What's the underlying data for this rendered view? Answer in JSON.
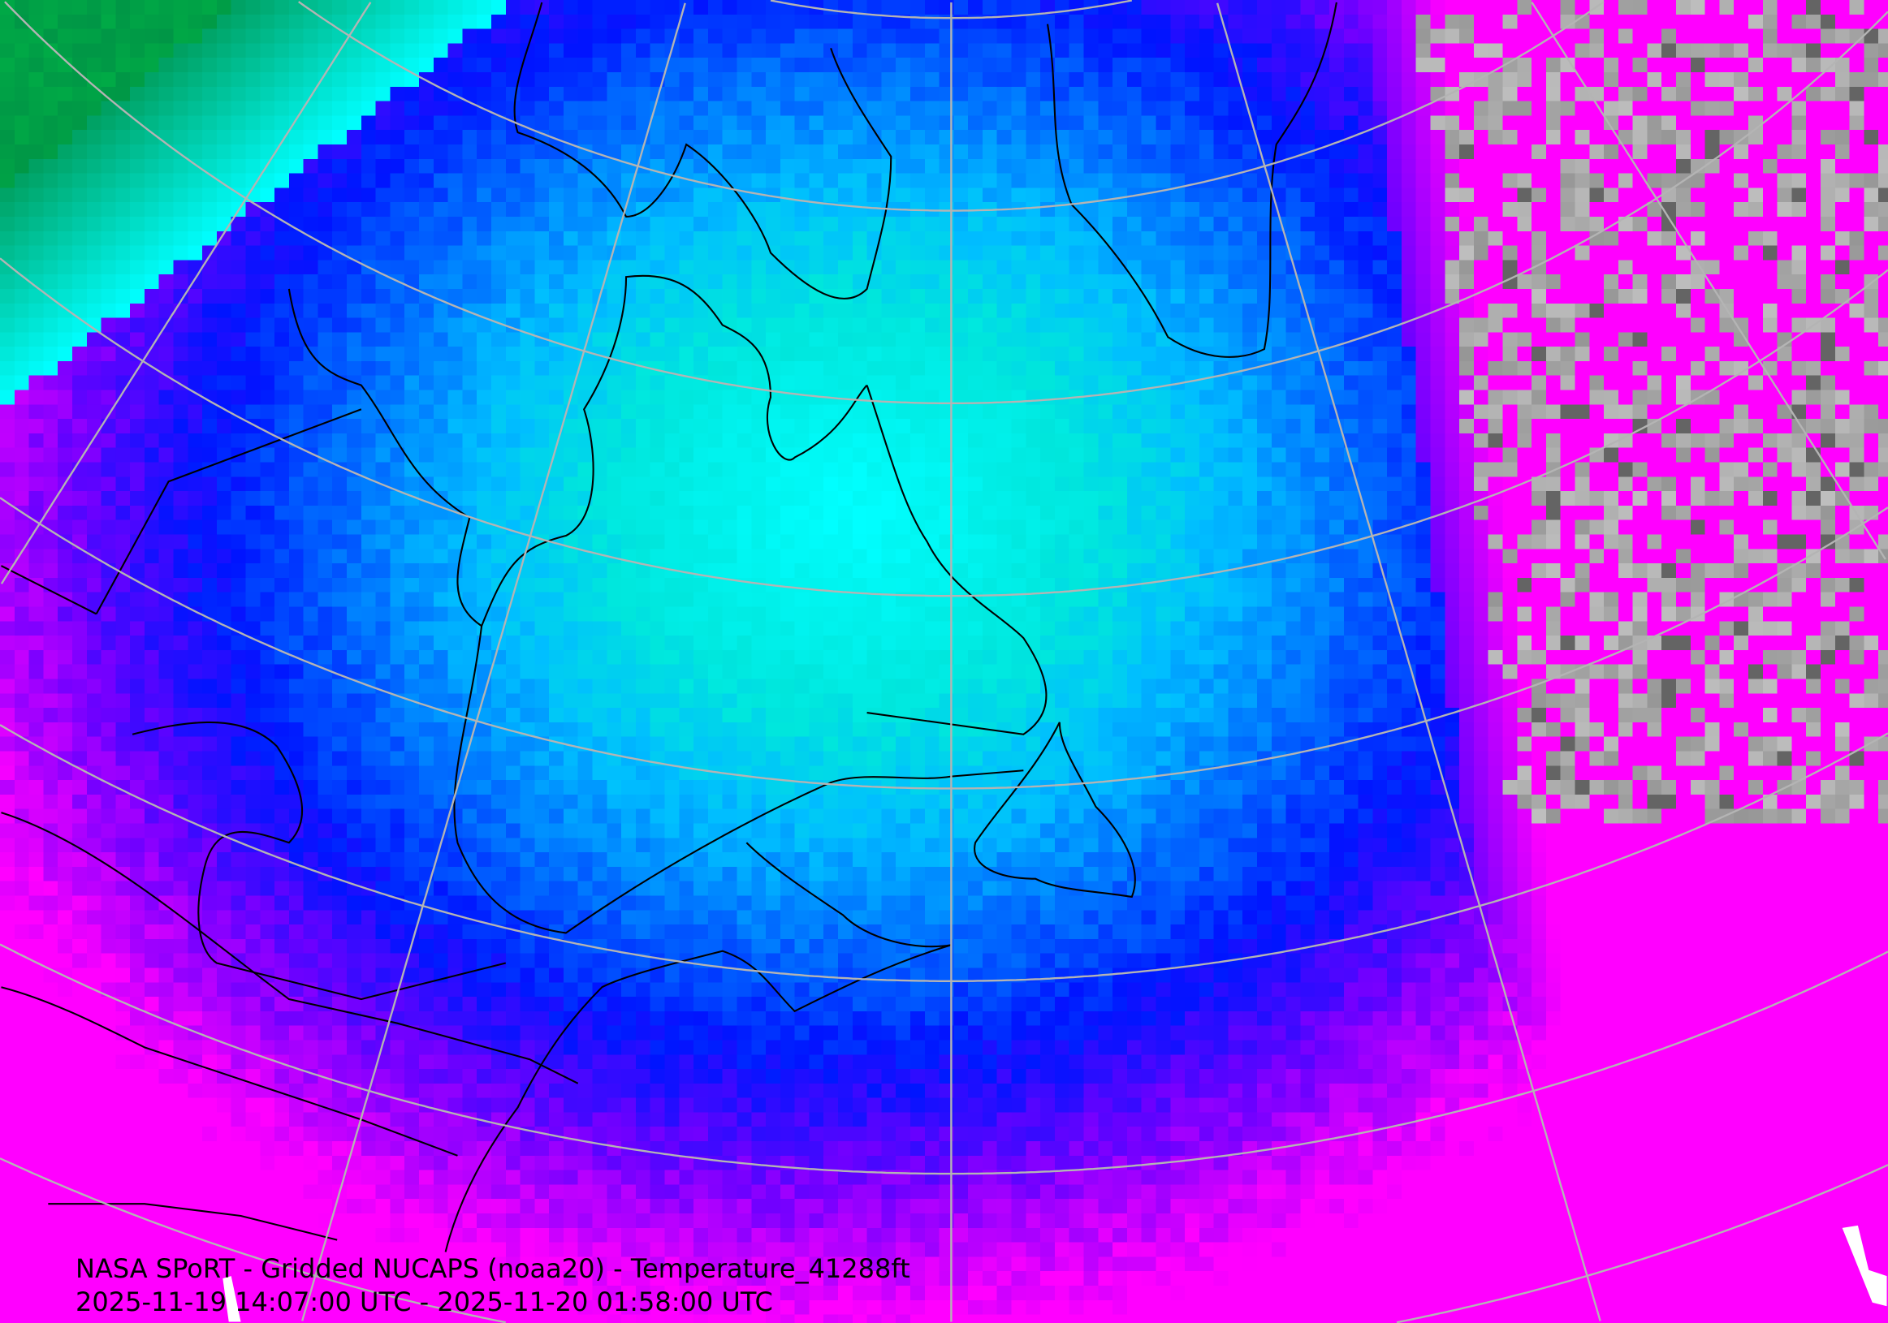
{
  "map": {
    "title": "NASA SPoRT - Gridded NUCAPS (noaa20) - Temperature_41288ft",
    "time_range": "2025-11-19 14:07:00 UTC - 2025-11-20 01:58:00 UTC",
    "projection": "conic",
    "colors": {
      "green": "#00a050",
      "cyan": "#00ffff",
      "light_blue": "#0090ff",
      "blue": "#0000ff",
      "violet": "#8000ff",
      "magenta": "#ff00ff",
      "gray": "#b0b0b0",
      "grid": "#b4b4b4",
      "coastline": "#000000"
    }
  }
}
